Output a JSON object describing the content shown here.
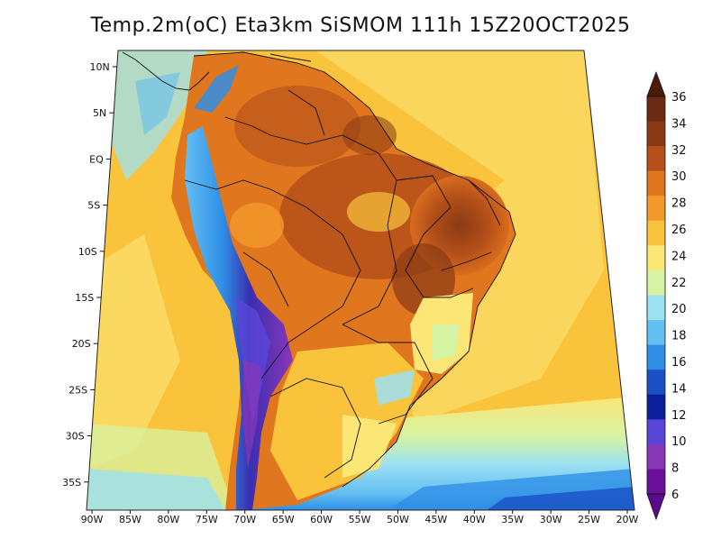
{
  "title": "Temp.2m(oC) Eta3km SiSMOM 111h 15Z20OCT2025",
  "map": {
    "lat_labels": [
      "10N",
      "5N",
      "EQ",
      "5S",
      "10S",
      "15S",
      "20S",
      "25S",
      "30S",
      "35S"
    ],
    "lon_labels": [
      "90W",
      "85W",
      "80W",
      "75W",
      "70W",
      "65W",
      "60W",
      "55W",
      "50W",
      "45W",
      "40W",
      "35W",
      "30W",
      "25W",
      "20W"
    ]
  },
  "colorbar": {
    "labels": [
      "36",
      "34",
      "32",
      "30",
      "28",
      "26",
      "24",
      "22",
      "20",
      "18",
      "16",
      "14",
      "12",
      "10",
      "8",
      "6"
    ],
    "colors": [
      "#6b2a12",
      "#8a3a14",
      "#b5501a",
      "#e0761e",
      "#f39a2a",
      "#f9c43c",
      "#fbe676",
      "#d6f3a3",
      "#9be1f2",
      "#64bff2",
      "#2f8fe6",
      "#1a4fc6",
      "#0a1f9e",
      "#5a46d8",
      "#8a36b8",
      "#6a0f9a"
    ],
    "bottom_color": "#5a0a8a",
    "top_color": "#4a1a0a"
  }
}
